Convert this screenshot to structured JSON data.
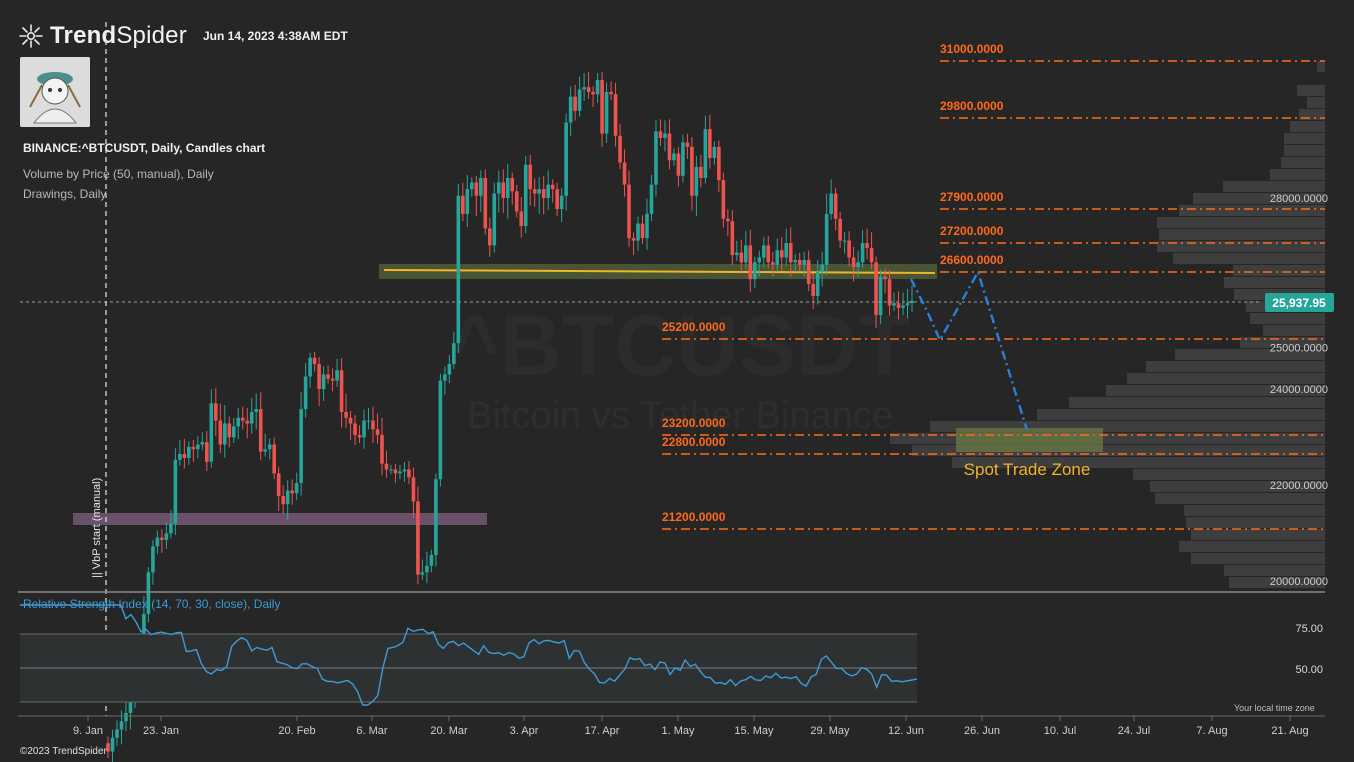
{
  "header": {
    "brand_bold": "Trend",
    "brand_light": "Spider",
    "datetime": "Jun 14, 2023 4:38AM EDT"
  },
  "legend": {
    "symbol": "BINANCE:^BTCUSDT, Daily, Candles chart",
    "indicator_vbp": "Volume by Price (50, manual), Daily",
    "indicator_drawings": "Drawings, Daily"
  },
  "watermark": {
    "symbol": "^BTCUSDT",
    "description": "Bitcoin vs Tether Binance"
  },
  "vbp_marker": "|| VbP start (manual)",
  "current_price": "25,937.95",
  "zone_label": "Spot Trade Zone",
  "rsi": {
    "label": "Relative Strength Index (14, 70, 30, close), Daily"
  },
  "footer": {
    "copyright": "©2023 TrendSpider",
    "local_time": "Your local time zone"
  },
  "colors": {
    "background": "#262626",
    "bull_candle": "#26a69a",
    "bear_candle": "#ef5350",
    "level_line": "#ff6a1a",
    "support_zone": "#55643a",
    "support_line": "#f0b428",
    "demand_zone": "#7a5c7a",
    "projection": "#2f7fd6",
    "rsi_line": "#3d9bd6",
    "price_badge": "#26a69a"
  },
  "chart_data": {
    "type": "candlestick",
    "symbol": "BINANCE:^BTCUSDT",
    "interval": "Daily",
    "x_ticks": [
      "9. Jan",
      "23. Jan",
      "20. Feb",
      "6. Mar",
      "20. Mar",
      "3. Apr",
      "17. Apr",
      "1. May",
      "15. May",
      "29. May",
      "12. Jun",
      "26. Jun",
      "10. Jul",
      "24. Jul",
      "7. Aug",
      "21. Aug"
    ],
    "y_ticks": [
      "20000.0000",
      "22000.0000",
      "24000.0000",
      "25000.0000",
      "28000.0000"
    ],
    "ylim": [
      19800,
      31300
    ],
    "price_levels": [
      {
        "label": "31000.0000",
        "value": 31000
      },
      {
        "label": "29800.0000",
        "value": 29800
      },
      {
        "label": "27900.0000",
        "value": 27900
      },
      {
        "label": "27200.0000",
        "value": 27200
      },
      {
        "label": "26600.0000",
        "value": 26600
      },
      {
        "label": "25200.0000",
        "value": 25200
      },
      {
        "label": "23200.0000",
        "value": 23200
      },
      {
        "label": "22800.0000",
        "value": 22800
      },
      {
        "label": "21200.0000",
        "value": 21200
      }
    ],
    "current_price": 25937.95,
    "close_series": [
      16900,
      17150,
      17300,
      17450,
      17600,
      17900,
      18200,
      18700,
      19400,
      20200,
      20800,
      21000,
      20950,
      21100,
      21300,
      22650,
      22800,
      22700,
      22950,
      22900,
      23000,
      23050,
      22600,
      23750,
      23450,
      23000,
      23400,
      23150,
      23350,
      23500,
      23450,
      23400,
      23600,
      23650,
      22850,
      22900,
      23000,
      22300,
      21800,
      21650,
      21900,
      21850,
      22050,
      23650,
      24300,
      24750,
      24600,
      24000,
      24350,
      24250,
      24200,
      24450,
      23600,
      23500,
      23400,
      23200,
      23150,
      23450,
      23450,
      23300,
      23200,
      22550,
      22400,
      22400,
      22300,
      22350,
      22400,
      22200,
      21700,
      20150,
      20200,
      20350,
      20600,
      22150,
      24200,
      24350,
      24600,
      25100,
      28050,
      27800,
      28200,
      28350,
      28050,
      28450,
      27500,
      27150,
      28100,
      28350,
      28000,
      28450,
      28150,
      27850,
      27550,
      28750,
      28200,
      28100,
      28200,
      28000,
      28300,
      28200,
      27900,
      28050,
      29700,
      30250,
      29950,
      30400,
      30450,
      30350,
      30300,
      30600,
      29450,
      30350,
      30300,
      29400,
      28800,
      28300,
      27300,
      27250,
      27600,
      27300,
      27800,
      28300,
      29500,
      29350,
      29450,
      28850,
      29000,
      28500,
      29250,
      29150,
      28050,
      28700,
      28450,
      29550,
      28900,
      29150,
      28400,
      27700,
      27650,
      26950,
      27000,
      26800,
      27150,
      26450,
      26800,
      26900,
      27150,
      26800,
      26750,
      27050,
      26900,
      27200,
      26800,
      26850,
      26750,
      26850,
      26350,
      26100,
      26600,
      26750,
      27800,
      28100,
      27700,
      27250,
      27250,
      26900,
      26700,
      26800,
      27200,
      27100,
      26800,
      25700,
      26500,
      26450,
      25900,
      25950,
      25850,
      25900,
      25950,
      26000
    ]
  }
}
